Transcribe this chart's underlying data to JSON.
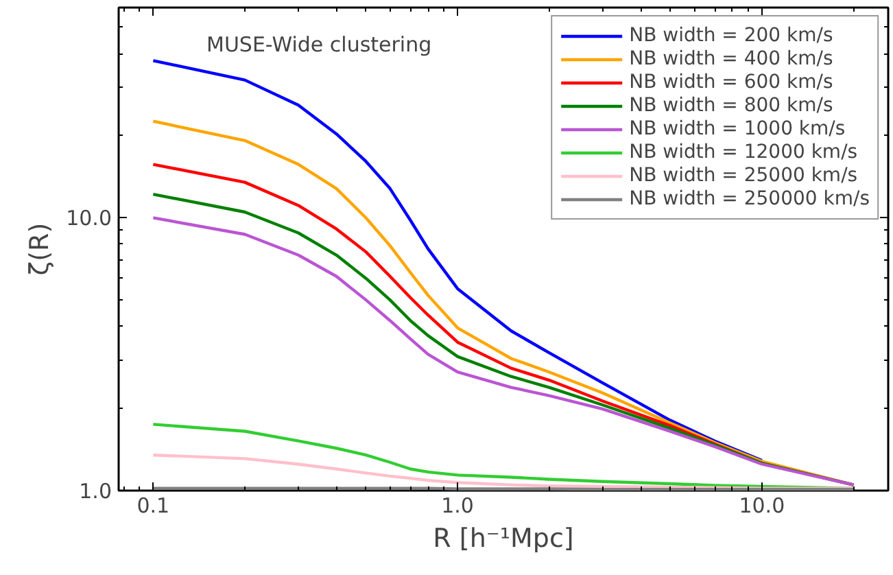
{
  "chart_data": {
    "type": "line",
    "xlabel": "R [h⁻¹Mpc]",
    "ylabel": "ζ(R)",
    "annotations": [
      "MUSE-Wide clustering"
    ],
    "log": "xy",
    "xlim": [
      0.077,
      26
    ],
    "ylim": [
      1.0,
      59
    ],
    "xticks": [
      {
        "value": 0.1,
        "label": "0.1"
      },
      {
        "value": 1,
        "label": "1.0"
      },
      {
        "value": 10,
        "label": "10.0"
      }
    ],
    "yticks": [
      {
        "value": 1,
        "label": "1.0"
      },
      {
        "value": 10,
        "label": "10.0"
      }
    ],
    "grid": false,
    "legend": "top right",
    "line_style": "solid",
    "marker": "none",
    "x": [
      0.1,
      0.2,
      0.3,
      0.4,
      0.5,
      0.6,
      0.7,
      0.8,
      1.0,
      1.5,
      2,
      3,
      5,
      7,
      10,
      20
    ],
    "series": [
      {
        "name": "NB width = 200 km/s",
        "color": "#0000ff",
        "values": [
          37.7,
          32.0,
          25.9,
          20.3,
          16.1,
          12.8,
          9.8,
          7.7,
          5.5,
          3.85,
          3.2,
          2.48,
          1.81,
          1.52,
          1.29,
          null
        ]
      },
      {
        "name": "NB width = 400 km/s",
        "color": "#ffa500",
        "values": [
          22.6,
          19.2,
          15.7,
          12.8,
          10.0,
          7.9,
          6.3,
          5.2,
          3.95,
          3.05,
          2.72,
          2.28,
          1.77,
          1.5,
          1.28,
          1.05
        ]
      },
      {
        "name": "NB width = 600 km/s",
        "color": "#ff0000",
        "values": [
          15.7,
          13.5,
          11.1,
          9.1,
          7.5,
          6.1,
          5.1,
          4.4,
          3.5,
          2.81,
          2.54,
          2.13,
          1.73,
          1.48,
          1.26,
          1.05
        ]
      },
      {
        "name": "NB width = 800 km/s",
        "color": "#008000",
        "values": [
          12.2,
          10.5,
          8.8,
          7.3,
          6.0,
          5.0,
          4.2,
          3.7,
          3.1,
          2.62,
          2.39,
          2.06,
          1.69,
          1.47,
          1.26,
          1.05
        ]
      },
      {
        "name": "NB width = 1000 km/s",
        "color": "#ba55d3",
        "values": [
          10.0,
          8.7,
          7.3,
          6.1,
          5.0,
          4.2,
          3.6,
          3.16,
          2.72,
          2.39,
          2.23,
          1.99,
          1.65,
          1.45,
          1.25,
          1.05
        ]
      },
      {
        "name": "NB width = 12000 km/s",
        "color": "#32cd32",
        "values": [
          1.75,
          1.65,
          1.52,
          1.43,
          1.35,
          1.27,
          1.2,
          1.17,
          1.14,
          1.12,
          1.1,
          1.08,
          1.06,
          1.045,
          1.035,
          1.02
        ]
      },
      {
        "name": "NB width = 25000 km/s",
        "color": "#ffc0cb",
        "values": [
          1.35,
          1.31,
          1.25,
          1.2,
          1.16,
          1.13,
          1.11,
          1.09,
          1.07,
          1.05,
          1.04,
          1.035,
          1.03,
          1.025,
          1.02,
          1.02
        ]
      },
      {
        "name": "NB width = 250000 km/s",
        "color": "#808080",
        "values": [
          1.02,
          1.02,
          1.02,
          1.02,
          1.02,
          1.02,
          1.02,
          1.02,
          1.015,
          1.015,
          1.015,
          1.01,
          1.01,
          1.01,
          1.01,
          1.01
        ]
      }
    ]
  }
}
